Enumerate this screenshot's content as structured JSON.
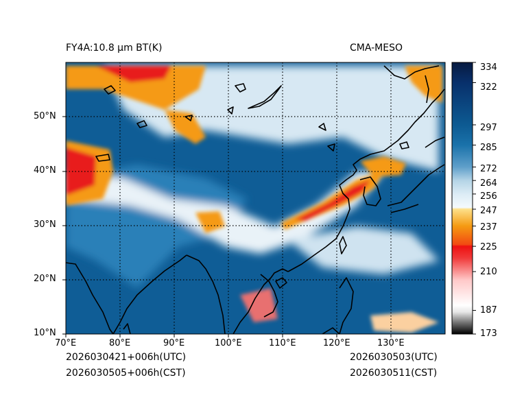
{
  "header": {
    "title_left": "FY4A:10.8 µm BT(K)",
    "title_right": "CMA-MESO"
  },
  "footer": {
    "init_utc": "2026030421+006h(UTC)",
    "init_cst": "2026030505+006h(CST)",
    "valid_utc": "2026030503(UTC)",
    "valid_cst": "2026030511(CST)"
  },
  "axes": {
    "lon_labels": [
      "70°E",
      "80°E",
      "90°E",
      "100°E",
      "110°E",
      "120°E",
      "130°E"
    ],
    "lon_values": [
      70,
      80,
      90,
      100,
      110,
      120,
      130
    ],
    "lat_labels": [
      "10°N",
      "20°N",
      "30°N",
      "40°N",
      "50°N"
    ],
    "lat_values": [
      10,
      20,
      30,
      40,
      50
    ],
    "lon_range": [
      70,
      140
    ],
    "lat_range": [
      10,
      60
    ]
  },
  "colorbar": {
    "tick_labels": [
      "334",
      "322",
      "297",
      "285",
      "272",
      "264",
      "256",
      "247",
      "237",
      "225",
      "210",
      "187",
      "173"
    ],
    "tick_values": [
      334,
      322,
      297,
      285,
      272,
      264,
      256,
      247,
      237,
      225,
      210,
      187,
      173
    ],
    "range": [
      173,
      334
    ],
    "stops": [
      {
        "v": 173,
        "c": "#000000"
      },
      {
        "v": 180,
        "c": "#777777"
      },
      {
        "v": 186,
        "c": "#e6e6e6"
      },
      {
        "v": 190,
        "c": "#ffffff"
      },
      {
        "v": 205,
        "c": "#ffc8c8"
      },
      {
        "v": 218,
        "c": "#f03a3a"
      },
      {
        "v": 225,
        "c": "#ee1111"
      },
      {
        "v": 226,
        "c": "#f24a12"
      },
      {
        "v": 237,
        "c": "#f59a12"
      },
      {
        "v": 247,
        "c": "#fde08a"
      },
      {
        "v": 248,
        "c": "#f4fafd"
      },
      {
        "v": 256,
        "c": "#dcecf5"
      },
      {
        "v": 264,
        "c": "#b4d4e6"
      },
      {
        "v": 272,
        "c": "#5f9fca"
      },
      {
        "v": 285,
        "c": "#1a72aa"
      },
      {
        "v": 297,
        "c": "#0d5a92"
      },
      {
        "v": 322,
        "c": "#08306b"
      },
      {
        "v": 334,
        "c": "#071a40"
      }
    ]
  },
  "colors": {
    "cold_cloud": "#e81e1e",
    "mid_cloud": "#f59a12",
    "high_cloud": "#e3eef6",
    "clear_sea": "#0f5d96",
    "clear_land": "#2a80b8",
    "coastline": "#000000",
    "grid": "#000000"
  }
}
